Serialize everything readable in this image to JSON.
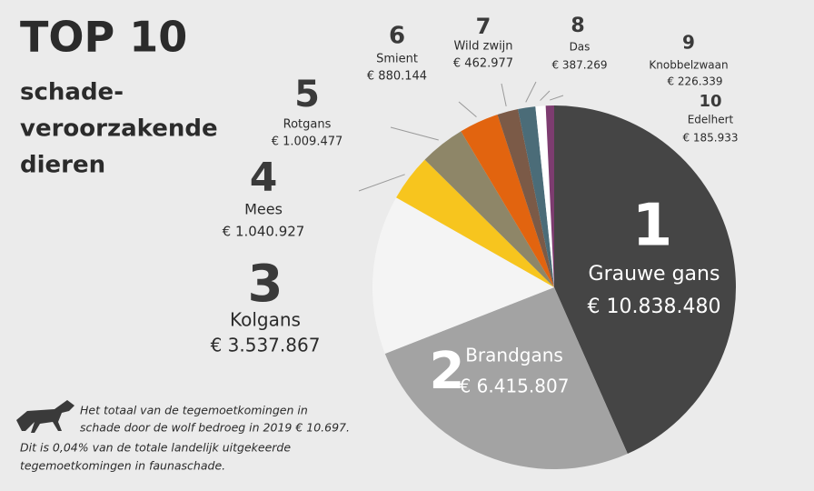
{
  "chart_data": {
    "type": "pie",
    "title": "TOP 10",
    "subtitle": [
      "schade-",
      "veroorzakende",
      "dieren"
    ],
    "ranks": [
      1,
      2,
      3,
      4,
      5,
      6,
      7,
      8,
      9,
      10
    ],
    "categories": [
      "Grauwe gans",
      "Brandgans",
      "Kolgans",
      "Mees",
      "Rotgans",
      "Smient",
      "Wild zwijn",
      "Das",
      "Knobbelzwaan",
      "Edelhert"
    ],
    "values": [
      10838480,
      6415807,
      3537867,
      1040927,
      1009477,
      880144,
      462977,
      387269,
      226339,
      185933
    ],
    "value_labels": [
      "€ 10.838.480",
      "€ 6.415.807",
      "€ 3.537.867",
      "€ 1.040.927",
      "€ 1.009.477",
      "€ 880.144",
      "€ 462.977",
      "€ 387.269",
      "€ 226.339",
      "€ 185.933"
    ],
    "colors": [
      "#454545",
      "#a3a3a3",
      "#f4f4f4",
      "#f7c51e",
      "#8e8668",
      "#e2640f",
      "#7b5a47",
      "#4b6c78",
      "#ffffff",
      "#7d3c70"
    ],
    "footnote": [
      "Het totaal van de tegemoetkomingen in",
      "schade door de wolf bedroeg in 2019 € 10.697.",
      "Dit is 0,04% van de totale landelijk uitgekeerde",
      "tegemoetkomingen in faunaschade."
    ]
  }
}
